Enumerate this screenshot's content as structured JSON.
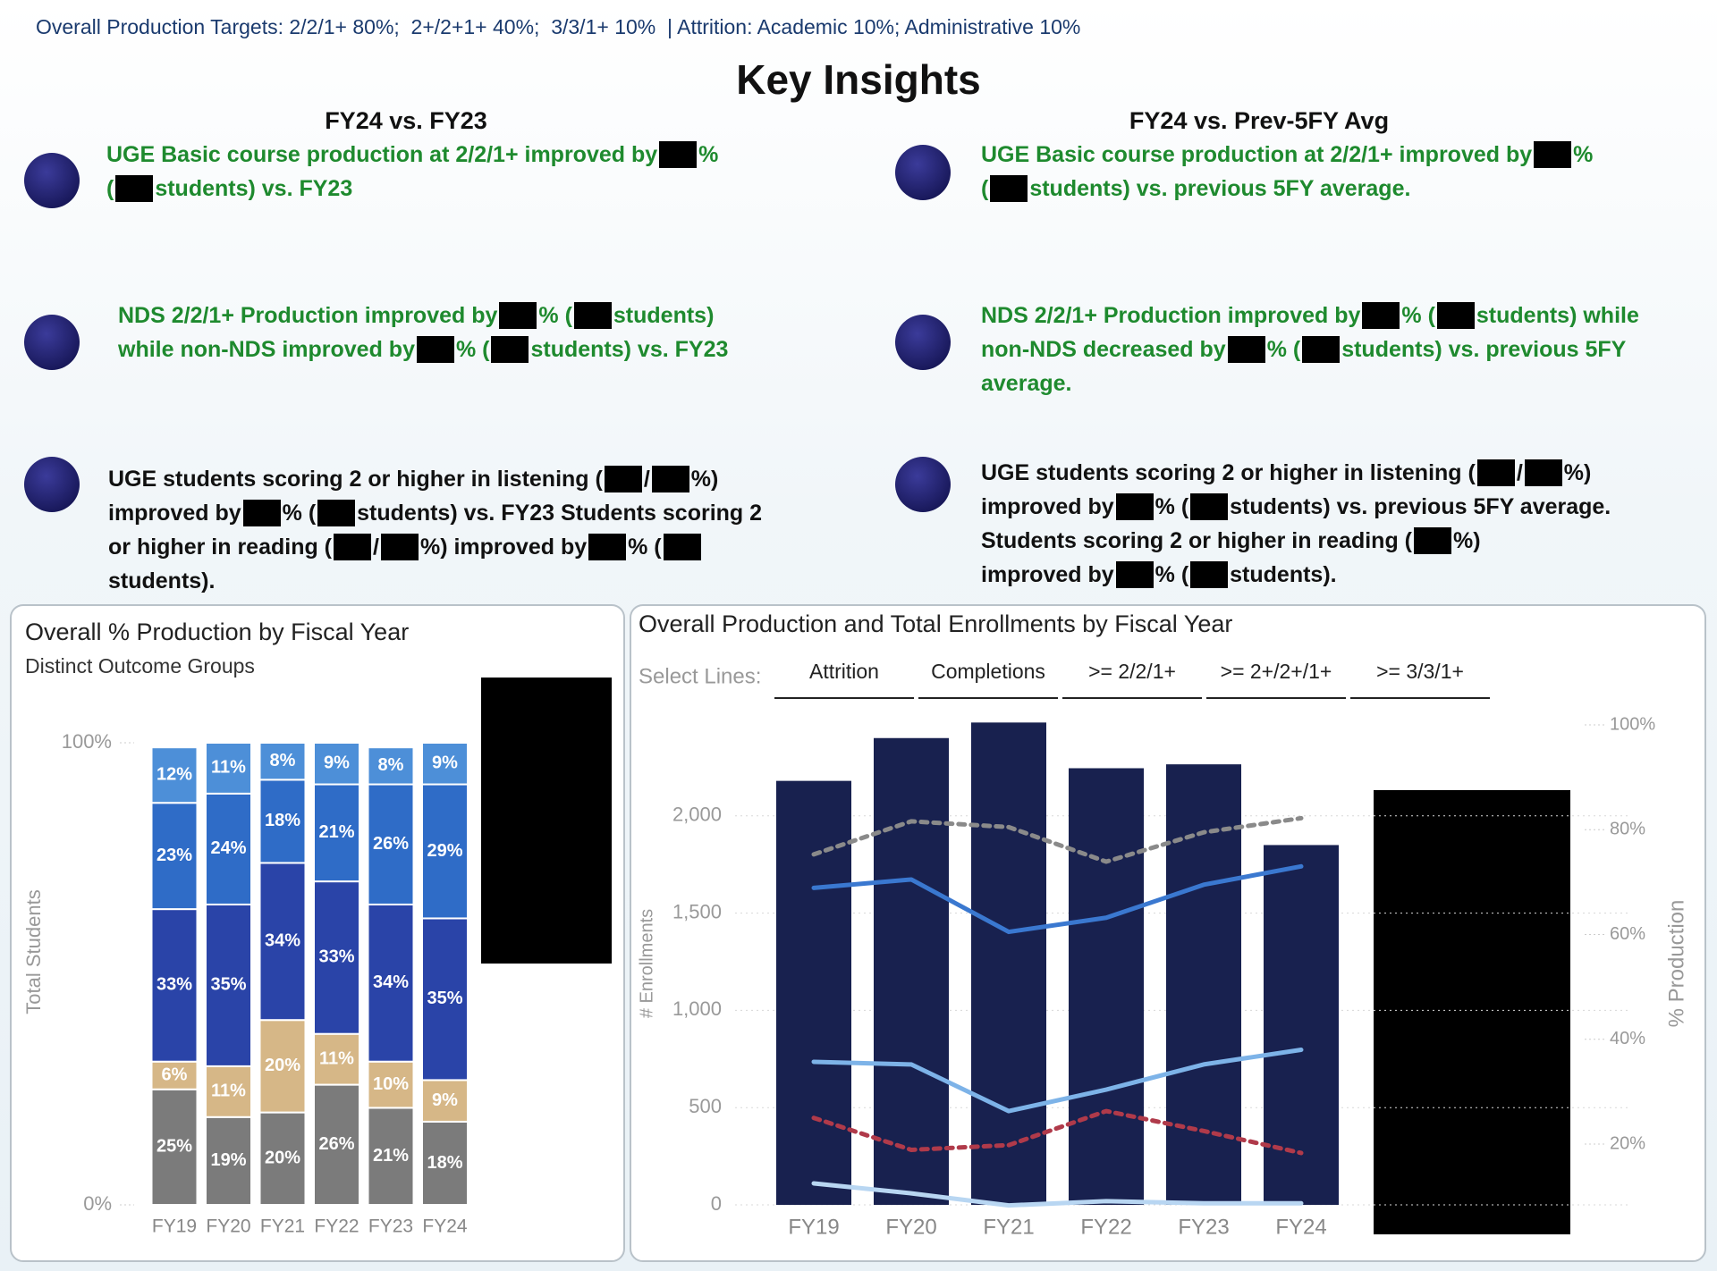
{
  "header": {
    "targets": "Overall Production Targets: 2/2/1+ 80%;  2+/2+1+ 40%;  3/3/1+ 10%  | Attrition: Academic 10%; Administrative 10%",
    "title": "Key Insights"
  },
  "insights": {
    "left": {
      "heading": "FY24 vs. FY23",
      "items": [
        {
          "color": "#1e8a2e",
          "lines": [
            [
              "UGE Basic course production at 2/2/1+ improved by",
              "%"
            ],
            [
              "(",
              "students) vs. FY23"
            ]
          ]
        },
        {
          "color": "#1e8a2e",
          "lines": [
            [
              "NDS 2/2/1+ Production improved by",
              "% (",
              "students)"
            ],
            [
              "while non-NDS improved by",
              "% (",
              "students) vs. FY23"
            ]
          ]
        },
        {
          "color": "#111111",
          "lines": [
            [
              "UGE students scoring 2 or higher in listening (",
              "/",
              "%)"
            ],
            [
              "improved by",
              "% (",
              "students) vs. FY23 Students scoring 2"
            ],
            [
              "or higher in reading (",
              "/",
              "%) improved by",
              "% ("
            ],
            [
              "students)."
            ]
          ]
        }
      ]
    },
    "right": {
      "heading": "FY24 vs. Prev-5FY Avg",
      "items": [
        {
          "color": "#1e8a2e",
          "lines": [
            [
              "UGE Basic course production at 2/2/1+ improved by",
              "%"
            ],
            [
              "(",
              "students) vs. previous 5FY average."
            ]
          ]
        },
        {
          "color": "#1e8a2e",
          "lines": [
            [
              "NDS 2/2/1+ Production improved by",
              "% (",
              "students) while"
            ],
            [
              "non-NDS decreased by",
              "% (",
              "students) vs. previous 5FY"
            ],
            [
              "average."
            ]
          ]
        },
        {
          "color": "#111111",
          "lines": [
            [
              "UGE students scoring 2 or higher in listening (",
              "/",
              "%)"
            ],
            [
              "improved by",
              "% (",
              "students) vs. previous 5FY average."
            ],
            [
              "Students scoring 2 or higher in reading (",
              "%)"
            ],
            [
              "improved by",
              "% (",
              "students)."
            ]
          ]
        }
      ]
    }
  },
  "chart_data": [
    {
      "type": "stacked_bar",
      "title": "Overall % Production by Fiscal Year",
      "subtitle": "Distinct Outcome Groups",
      "y_label": "Total Students",
      "categories": [
        "FY19",
        "FY20",
        "FY21",
        "FY22",
        "FY23",
        "FY24"
      ],
      "series": [
        {
          "color": "#7b7b7b",
          "values": [
            25,
            19,
            20,
            26,
            21,
            18
          ],
          "value_labels": [
            "25%",
            "19%",
            "20%",
            "26%",
            "21%",
            "18%"
          ]
        },
        {
          "color": "#d6b787",
          "values": [
            6,
            11,
            20,
            11,
            10,
            9
          ],
          "value_labels": [
            "6%",
            "11%",
            "20%",
            "11%",
            "10%",
            "9%"
          ]
        },
        {
          "color": "#2a44a8",
          "values": [
            33,
            35,
            34,
            33,
            34,
            35
          ],
          "value_labels": [
            "33%",
            "35%",
            "34%",
            "33%",
            "34%",
            "35%"
          ]
        },
        {
          "color": "#2f6cc7",
          "values": [
            23,
            24,
            18,
            21,
            26,
            29
          ],
          "value_labels": [
            "23%",
            "24%",
            "18%",
            "21%",
            "26%",
            "29%"
          ]
        },
        {
          "color": "#4d8fd8",
          "values": [
            12,
            11,
            8,
            9,
            8,
            9
          ],
          "value_labels": [
            "12%",
            "11%",
            "8%",
            "9%",
            "8%",
            "9%"
          ]
        }
      ],
      "ylim": [
        0,
        100
      ],
      "yticks": [
        {
          "value": 0,
          "label": "0%"
        },
        {
          "value": 100,
          "label": "100%"
        }
      ]
    },
    {
      "type": "combo",
      "title": "Overall Production and Total Enrollments by Fiscal Year",
      "select_label": "Select Lines:",
      "select_lines": [
        "Attrition",
        "Completions",
        ">= 2/2/1+",
        ">= 2+/2+/1+",
        ">= 3/3/1+"
      ],
      "y_label": "# Enrollments",
      "y2_label": "% Production",
      "categories": [
        "FY19",
        "FY20",
        "FY21",
        "FY22",
        "FY23",
        "FY24"
      ],
      "series": [
        {
          "kind": "bar",
          "color": "#18214f",
          "values": [
            2180,
            2400,
            2480,
            2245,
            2265,
            1850
          ]
        },
        {
          "kind": "line",
          "axis": "y2",
          "color": "#8a8a8a",
          "dashed": true,
          "values": [
            75.3,
            81.6,
            80.5,
            73.9,
            79.5,
            82.2
          ]
        },
        {
          "kind": "line",
          "axis": "y2",
          "color": "#3a78d0",
          "dashed": false,
          "values": [
            68.9,
            70.5,
            60.5,
            63.2,
            69.5,
            73.0
          ]
        },
        {
          "kind": "line",
          "axis": "y2",
          "color": "#7db3e8",
          "dashed": false,
          "values": [
            35.7,
            35.2,
            26.3,
            30.4,
            35.2,
            38.0
          ]
        },
        {
          "kind": "line",
          "axis": "y2",
          "color": "#b03a4a",
          "dashed": true,
          "values": [
            25.0,
            18.9,
            19.8,
            26.3,
            22.5,
            18.3
          ]
        },
        {
          "kind": "line",
          "axis": "y2",
          "color": "#b8d6f2",
          "dashed": false,
          "values": [
            12.5,
            10.6,
            8.3,
            9.1,
            8.7,
            8.7
          ]
        }
      ],
      "ylim": [
        0,
        2500
      ],
      "yticks": [
        0,
        500,
        {
          "value": 1000,
          "label": "1,000"
        },
        {
          "value": 1500,
          "label": "1,500"
        },
        {
          "value": 2000,
          "label": "2,000"
        }
      ],
      "y2lim": [
        8.4,
        101.2
      ],
      "y2ticks": [
        {
          "value": 20,
          "label": "20%"
        },
        {
          "value": 40,
          "label": "40%"
        },
        {
          "value": 60,
          "label": "60%"
        },
        {
          "value": 80,
          "label": "80%"
        },
        {
          "value": 100,
          "label": "100%"
        }
      ]
    }
  ]
}
